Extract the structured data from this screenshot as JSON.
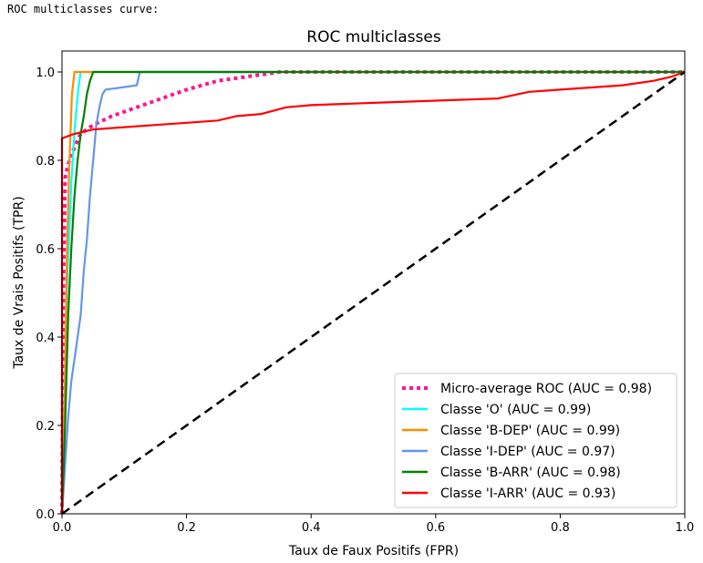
{
  "output_header": "ROC multiclasses curve:",
  "chart_data": {
    "type": "line",
    "title": "ROC multiclasses",
    "xlabel": "Taux de Faux Positifs (FPR)",
    "ylabel": "Taux de Vrais Positifs (TPR)",
    "xlim": [
      0.0,
      1.0
    ],
    "ylim": [
      0.0,
      1.0
    ],
    "x_ticks": [
      "0.0",
      "0.2",
      "0.4",
      "0.6",
      "0.8",
      "1.0"
    ],
    "y_ticks": [
      "0.0",
      "0.2",
      "0.4",
      "0.6",
      "0.8",
      "1.0"
    ],
    "grid": false,
    "legend_position": "lower-right",
    "series": [
      {
        "name": "Micro-average ROC (AUC = 0.98)",
        "color": "#ff1493",
        "style": "dotted",
        "x": [
          0.0,
          0.002,
          0.005,
          0.008,
          0.012,
          0.02,
          0.03,
          0.05,
          0.08,
          0.12,
          0.16,
          0.2,
          0.25,
          0.3,
          0.35,
          0.5,
          0.7,
          0.9,
          1.0
        ],
        "y": [
          0.0,
          0.5,
          0.76,
          0.78,
          0.8,
          0.83,
          0.86,
          0.88,
          0.9,
          0.92,
          0.94,
          0.96,
          0.98,
          0.99,
          1.0,
          1.0,
          1.0,
          1.0,
          1.0
        ]
      },
      {
        "name": "Classe 'O' (AUC = 0.99)",
        "color": "#00ffff",
        "style": "solid",
        "x": [
          0.0,
          0.003,
          0.006,
          0.009,
          0.012,
          0.015,
          0.018,
          0.021,
          0.024,
          0.027,
          0.03,
          1.0
        ],
        "y": [
          0.0,
          0.2,
          0.4,
          0.55,
          0.65,
          0.75,
          0.82,
          0.88,
          0.93,
          0.97,
          1.0,
          1.0
        ]
      },
      {
        "name": "Classe 'B-DEP' (AUC = 0.99)",
        "color": "#ff8c00",
        "style": "solid",
        "x": [
          0.0,
          0.005,
          0.008,
          0.012,
          0.016,
          0.02,
          1.0
        ],
        "y": [
          0.0,
          0.3,
          0.6,
          0.8,
          0.95,
          1.0,
          1.0
        ]
      },
      {
        "name": "Classe 'I-DEP' (AUC = 0.97)",
        "color": "#6495ed",
        "style": "solid",
        "x": [
          0.0,
          0.01,
          0.015,
          0.02,
          0.025,
          0.03,
          0.035,
          0.04,
          0.045,
          0.05,
          0.055,
          0.06,
          0.065,
          0.07,
          0.12,
          0.125,
          1.0
        ],
        "y": [
          0.0,
          0.22,
          0.3,
          0.35,
          0.4,
          0.45,
          0.55,
          0.62,
          0.72,
          0.8,
          0.88,
          0.92,
          0.95,
          0.96,
          0.97,
          1.0,
          1.0
        ]
      },
      {
        "name": "Classe 'B-ARR' (AUC = 0.98)",
        "color": "#008000",
        "style": "solid",
        "x": [
          0.0,
          0.005,
          0.01,
          0.015,
          0.02,
          0.025,
          0.03,
          0.035,
          0.04,
          0.045,
          0.05,
          1.0
        ],
        "y": [
          0.0,
          0.2,
          0.45,
          0.6,
          0.72,
          0.8,
          0.86,
          0.9,
          0.95,
          0.98,
          1.0,
          1.0
        ]
      },
      {
        "name": "Classe 'I-ARR' (AUC = 0.93)",
        "color": "#ff0000",
        "style": "solid",
        "x": [
          0.0,
          0.0,
          0.02,
          0.05,
          0.1,
          0.15,
          0.2,
          0.25,
          0.28,
          0.32,
          0.36,
          0.4,
          0.5,
          0.6,
          0.7,
          0.75,
          0.8,
          0.85,
          0.9,
          0.95,
          0.98,
          1.0
        ],
        "y": [
          0.0,
          0.85,
          0.86,
          0.87,
          0.875,
          0.88,
          0.885,
          0.89,
          0.9,
          0.905,
          0.92,
          0.925,
          0.93,
          0.935,
          0.94,
          0.955,
          0.96,
          0.965,
          0.97,
          0.98,
          0.99,
          1.0
        ]
      },
      {
        "name": "",
        "color": "#000000",
        "style": "dashed",
        "x": [
          0.0,
          1.0
        ],
        "y": [
          0.0,
          1.0
        ]
      }
    ]
  }
}
